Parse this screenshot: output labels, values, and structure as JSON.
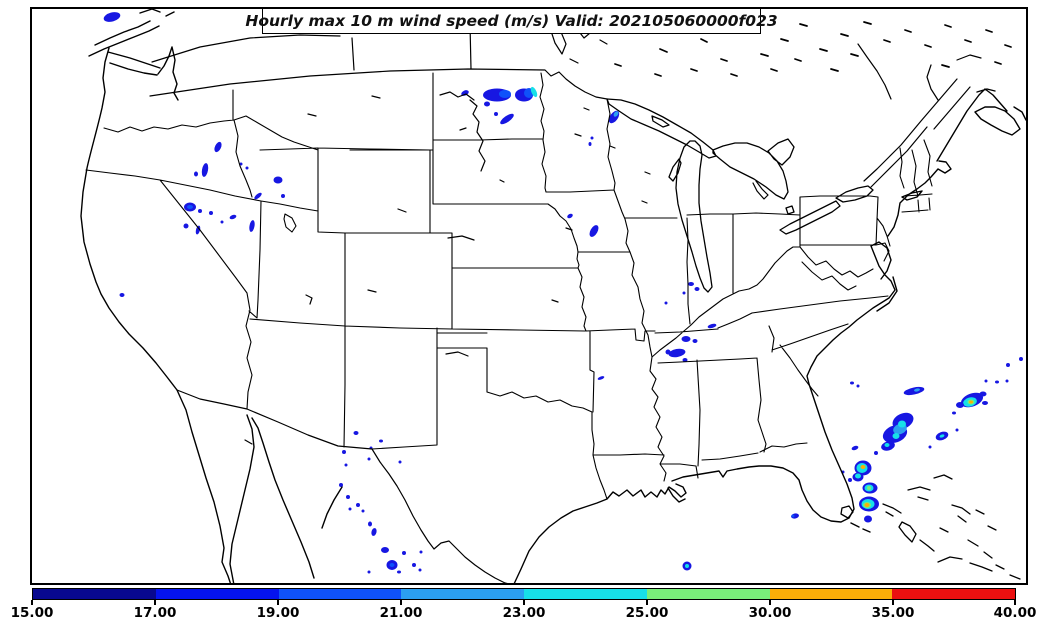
{
  "figure": {
    "title": "Hourly max 10 m wind speed (m/s) Valid: 202105060000f023"
  },
  "chart_data": {
    "type": "heatmap",
    "title": "Hourly max 10 m wind speed (m/s)",
    "valid_label": "Valid: 202105060000f023",
    "region": "Continental United States with state borders, Lambert-style projection",
    "units": "m/s",
    "colorbar": {
      "orientation": "horizontal",
      "position": "bottom",
      "levels": [
        15,
        17,
        19,
        21,
        23,
        25,
        30,
        35,
        40
      ],
      "ticks": [
        "15.00",
        "17.00",
        "19.00",
        "21.00",
        "23.00",
        "25.00",
        "30.00",
        "35.00",
        "40.00"
      ],
      "colors": [
        "#08088f",
        "#0513ee",
        "#0f52fa",
        "#2b9ff0",
        "#17e0e8",
        "#79ef7a",
        "#fbae08",
        "#eb1010"
      ]
    },
    "palette": {
      "b": "#1717e2",
      "l": "#0f52fa",
      "s": "#2b9ff0",
      "c": "#17e0e8",
      "g": "#79ef7a",
      "y": "#fbae08"
    },
    "cells": [
      [
        112,
        17,
        17,
        9,
        -15,
        "b"
      ],
      [
        497,
        95,
        28,
        13,
        0,
        "b"
      ],
      [
        505,
        94,
        12,
        8,
        0,
        "l"
      ],
      [
        524,
        95,
        18,
        13,
        0,
        "b"
      ],
      [
        529,
        93,
        10,
        10,
        0,
        "l"
      ],
      [
        534,
        92,
        5,
        11,
        -25,
        "c"
      ],
      [
        465,
        93,
        8,
        5,
        -25,
        "b"
      ],
      [
        487,
        104,
        6,
        5,
        0,
        "b"
      ],
      [
        507,
        119,
        16,
        6,
        -35,
        "b"
      ],
      [
        496,
        114,
        4,
        4,
        0,
        "b"
      ],
      [
        614,
        117,
        8,
        14,
        35,
        "b"
      ],
      [
        616,
        114,
        4,
        6,
        35,
        "s"
      ],
      [
        592,
        138,
        3,
        3,
        0,
        "b"
      ],
      [
        590,
        144,
        3,
        4,
        0,
        "b"
      ],
      [
        218,
        147,
        6,
        11,
        25,
        "b"
      ],
      [
        205,
        170,
        6,
        14,
        10,
        "b"
      ],
      [
        196,
        174,
        4,
        5,
        0,
        "b"
      ],
      [
        241,
        164,
        3,
        3,
        0,
        "b"
      ],
      [
        247,
        168,
        3,
        3,
        0,
        "b"
      ],
      [
        278,
        180,
        9,
        7,
        0,
        "b"
      ],
      [
        258,
        196,
        9,
        4,
        -40,
        "b"
      ],
      [
        283,
        196,
        4,
        4,
        0,
        "b"
      ],
      [
        190,
        207,
        12,
        9,
        0,
        "b"
      ],
      [
        190,
        207,
        6,
        4,
        0,
        "l"
      ],
      [
        200,
        211,
        4,
        4,
        0,
        "b"
      ],
      [
        211,
        213,
        4,
        4,
        0,
        "b"
      ],
      [
        233,
        217,
        7,
        4,
        -20,
        "b"
      ],
      [
        252,
        226,
        5,
        12,
        10,
        "b"
      ],
      [
        186,
        226,
        5,
        5,
        0,
        "b"
      ],
      [
        198,
        230,
        4,
        9,
        15,
        "b"
      ],
      [
        222,
        222,
        3,
        3,
        0,
        "b"
      ],
      [
        122,
        295,
        5,
        4,
        0,
        "b"
      ],
      [
        570,
        216,
        6,
        4,
        -30,
        "b"
      ],
      [
        594,
        231,
        7,
        13,
        30,
        "b"
      ],
      [
        691,
        284,
        6,
        4,
        0,
        "b"
      ],
      [
        697,
        289,
        5,
        4,
        0,
        "b"
      ],
      [
        684,
        293,
        3,
        3,
        0,
        "b"
      ],
      [
        666,
        303,
        3,
        3,
        0,
        "b"
      ],
      [
        712,
        326,
        9,
        4,
        -15,
        "b"
      ],
      [
        686,
        339,
        9,
        6,
        0,
        "b"
      ],
      [
        695,
        341,
        5,
        4,
        0,
        "b"
      ],
      [
        677,
        353,
        17,
        8,
        -10,
        "b"
      ],
      [
        668,
        352,
        5,
        5,
        0,
        "b"
      ],
      [
        685,
        360,
        5,
        4,
        0,
        "b"
      ],
      [
        601,
        378,
        7,
        3,
        -20,
        "b"
      ],
      [
        356,
        433,
        5,
        4,
        0,
        "b"
      ],
      [
        381,
        441,
        4,
        3,
        0,
        "b"
      ],
      [
        371,
        448,
        3,
        3,
        0,
        "b"
      ],
      [
        344,
        452,
        4,
        4,
        0,
        "b"
      ],
      [
        369,
        459,
        3,
        3,
        0,
        "b"
      ],
      [
        346,
        465,
        3,
        3,
        0,
        "b"
      ],
      [
        400,
        462,
        3,
        3,
        0,
        "b"
      ],
      [
        341,
        485,
        4,
        4,
        0,
        "b"
      ],
      [
        348,
        497,
        4,
        4,
        0,
        "b"
      ],
      [
        358,
        505,
        4,
        4,
        0,
        "b"
      ],
      [
        350,
        509,
        3,
        3,
        0,
        "b"
      ],
      [
        363,
        511,
        3,
        3,
        0,
        "b"
      ],
      [
        370,
        524,
        4,
        5,
        0,
        "b"
      ],
      [
        374,
        532,
        5,
        8,
        15,
        "b"
      ],
      [
        385,
        550,
        8,
        6,
        0,
        "b"
      ],
      [
        404,
        553,
        4,
        4,
        0,
        "b"
      ],
      [
        421,
        552,
        3,
        3,
        0,
        "b"
      ],
      [
        392,
        565,
        11,
        10,
        0,
        "b"
      ],
      [
        392,
        565,
        5,
        4,
        0,
        "l"
      ],
      [
        399,
        572,
        4,
        3,
        0,
        "b"
      ],
      [
        414,
        565,
        4,
        4,
        0,
        "b"
      ],
      [
        420,
        570,
        3,
        3,
        0,
        "b"
      ],
      [
        369,
        572,
        3,
        3,
        0,
        "b"
      ],
      [
        687,
        566,
        9,
        9,
        0,
        "b"
      ],
      [
        687,
        566,
        4,
        4,
        0,
        "c"
      ],
      [
        795,
        516,
        8,
        5,
        -10,
        "b"
      ],
      [
        793,
        516,
        3,
        3,
        0,
        "l"
      ],
      [
        903,
        421,
        22,
        15,
        -25,
        "b"
      ],
      [
        895,
        434,
        25,
        17,
        -20,
        "b"
      ],
      [
        900,
        429,
        14,
        10,
        -20,
        "s"
      ],
      [
        902,
        424,
        8,
        7,
        0,
        "c"
      ],
      [
        896,
        436,
        7,
        6,
        0,
        "c"
      ],
      [
        888,
        446,
        14,
        9,
        -15,
        "b"
      ],
      [
        887,
        445,
        5,
        4,
        0,
        "c"
      ],
      [
        876,
        453,
        4,
        4,
        0,
        "b"
      ],
      [
        855,
        448,
        7,
        4,
        -20,
        "b"
      ],
      [
        863,
        468,
        17,
        15,
        0,
        "b"
      ],
      [
        862,
        468,
        11,
        10,
        0,
        "c"
      ],
      [
        863,
        467,
        5,
        4,
        0,
        "y"
      ],
      [
        858,
        477,
        11,
        9,
        0,
        "b"
      ],
      [
        858,
        476,
        6,
        5,
        0,
        "c"
      ],
      [
        850,
        480,
        4,
        4,
        0,
        "b"
      ],
      [
        843,
        472,
        3,
        3,
        0,
        "b"
      ],
      [
        870,
        488,
        15,
        11,
        0,
        "b"
      ],
      [
        869,
        488,
        9,
        7,
        0,
        "c"
      ],
      [
        869,
        488,
        4,
        4,
        0,
        "g"
      ],
      [
        869,
        504,
        20,
        15,
        0,
        "b"
      ],
      [
        868,
        504,
        13,
        10,
        0,
        "c"
      ],
      [
        867,
        505,
        8,
        6,
        0,
        "g"
      ],
      [
        867,
        505,
        5,
        4,
        0,
        "y"
      ],
      [
        868,
        519,
        8,
        7,
        0,
        "b"
      ],
      [
        942,
        436,
        13,
        8,
        -20,
        "b"
      ],
      [
        942,
        436,
        5,
        3,
        -20,
        "c"
      ],
      [
        930,
        447,
        3,
        3,
        0,
        "b"
      ],
      [
        957,
        430,
        3,
        3,
        0,
        "b"
      ],
      [
        914,
        391,
        21,
        7,
        -12,
        "b"
      ],
      [
        917,
        390,
        6,
        3,
        -12,
        "s"
      ],
      [
        852,
        383,
        4,
        3,
        0,
        "b"
      ],
      [
        858,
        386,
        3,
        3,
        0,
        "b"
      ],
      [
        972,
        400,
        23,
        13,
        -20,
        "b"
      ],
      [
        970,
        402,
        14,
        9,
        -15,
        "c"
      ],
      [
        971,
        402,
        7,
        5,
        0,
        "g"
      ],
      [
        971,
        402,
        4,
        3,
        0,
        "y"
      ],
      [
        960,
        405,
        8,
        6,
        0,
        "b"
      ],
      [
        983,
        394,
        7,
        5,
        0,
        "b"
      ],
      [
        985,
        403,
        6,
        4,
        0,
        "b"
      ],
      [
        954,
        413,
        4,
        3,
        0,
        "b"
      ],
      [
        986,
        381,
        3,
        3,
        0,
        "b"
      ],
      [
        997,
        382,
        4,
        3,
        0,
        "b"
      ],
      [
        1007,
        381,
        3,
        3,
        0,
        "b"
      ],
      [
        1008,
        365,
        4,
        4,
        0,
        "b"
      ],
      [
        1021,
        359,
        4,
        4,
        0,
        "b"
      ]
    ]
  }
}
